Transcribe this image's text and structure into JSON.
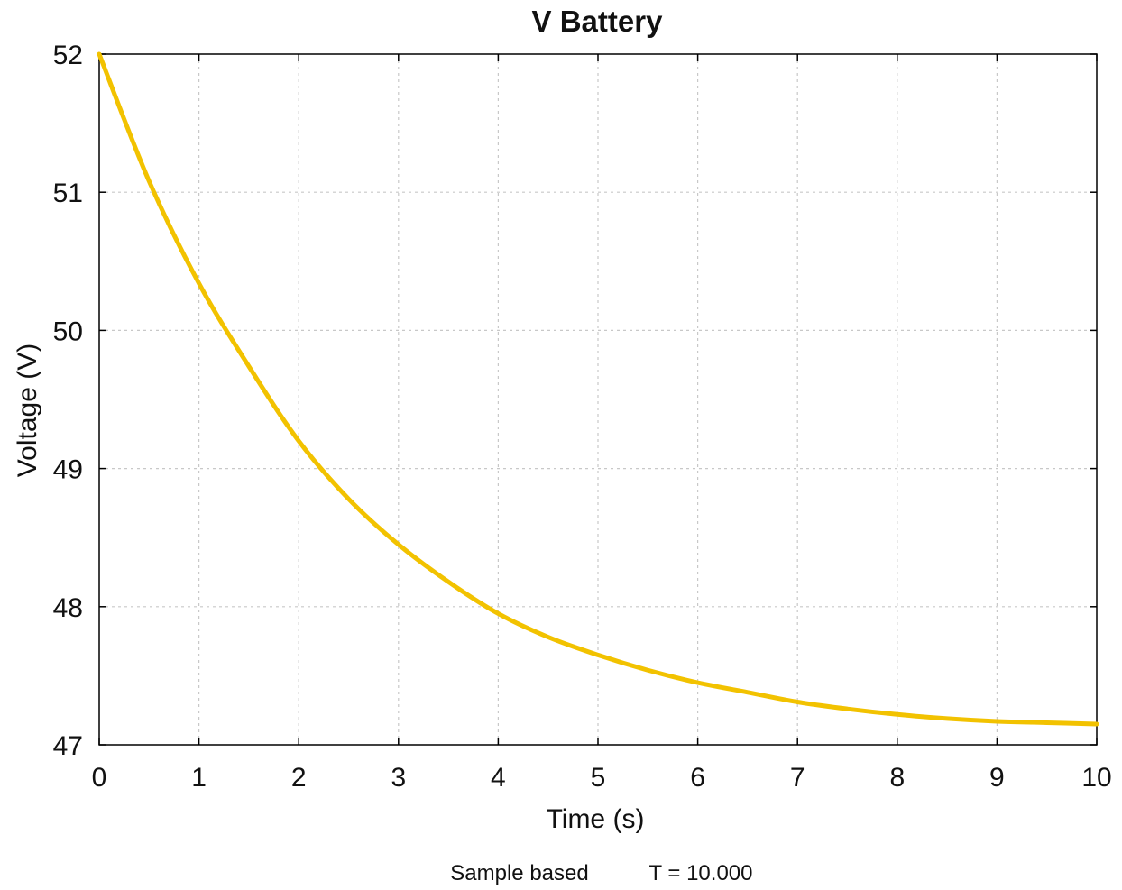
{
  "chart_data": {
    "type": "line",
    "title": "V Battery",
    "xlabel": "Time (s)",
    "ylabel": "Voltage (V)",
    "xlim": [
      0,
      10
    ],
    "ylim": [
      47,
      52
    ],
    "x_ticks": [
      "0",
      "1",
      "2",
      "3",
      "4",
      "5",
      "6",
      "7",
      "8",
      "9",
      "10"
    ],
    "y_ticks": [
      "47",
      "48",
      "49",
      "50",
      "51",
      "52"
    ],
    "grid": true,
    "series": [
      {
        "color": "#f2c200",
        "x": [
          0,
          0.5,
          1,
          1.5,
          2,
          2.5,
          3,
          3.5,
          4,
          4.5,
          5,
          5.5,
          6,
          6.5,
          7,
          7.5,
          8,
          8.5,
          9,
          9.5,
          10
        ],
        "y": [
          52.0,
          51.08,
          50.34,
          49.74,
          49.2,
          48.78,
          48.45,
          48.18,
          47.95,
          47.78,
          47.65,
          47.54,
          47.45,
          47.38,
          47.31,
          47.26,
          47.22,
          47.19,
          47.17,
          47.16,
          47.15
        ]
      }
    ]
  },
  "footer": {
    "mode_label": "Sample based",
    "time_label": "T = 10.000"
  }
}
